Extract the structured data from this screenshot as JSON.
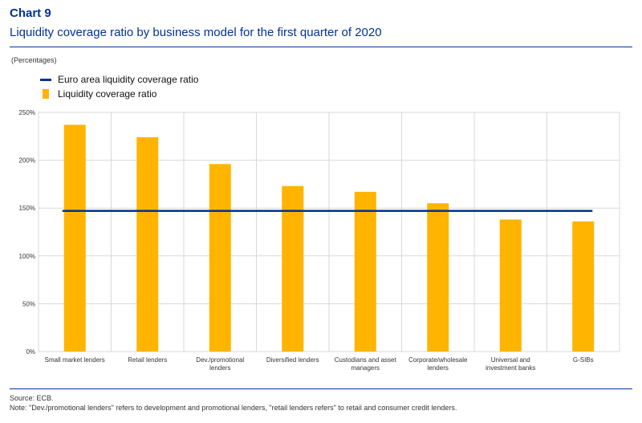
{
  "header": {
    "chart_number": "Chart 9",
    "title": "Liquidity coverage ratio by business model for the first quarter of 2020",
    "units": "(Percentages)"
  },
  "colors": {
    "bar": "#FFB400",
    "line": "#003299",
    "grid": "#D9D9D9",
    "title": "#003299"
  },
  "chart_data": {
    "type": "bar",
    "categories": [
      [
        "Small market lenders"
      ],
      [
        "Retail lenders"
      ],
      [
        "Dev./promotional",
        "lenders"
      ],
      [
        "Diversified lenders"
      ],
      [
        "Custodians and asset",
        "managers"
      ],
      [
        "Corporate/wholesale",
        "lenders"
      ],
      [
        "Universal and",
        "investment banks"
      ],
      [
        "G-SIBs"
      ]
    ],
    "series": [
      {
        "name": "Liquidity coverage ratio",
        "type": "bar",
        "values": [
          237,
          224,
          196,
          173,
          167,
          155,
          138,
          136
        ]
      },
      {
        "name": "Euro area liquidity coverage ratio",
        "type": "line",
        "values": [
          147,
          147,
          147,
          147,
          147,
          147,
          147,
          147
        ]
      }
    ],
    "ylim": [
      0,
      250
    ],
    "yticks": [
      0,
      50,
      100,
      150,
      200,
      250
    ],
    "ytick_labels": [
      "0%",
      "50%",
      "100%",
      "150%",
      "200%",
      "250%"
    ],
    "grid": true,
    "legend_position": "top-left"
  },
  "footer": {
    "source": "Source: ECB.",
    "note": "Note: \"Dev./promotional lenders\" refers to development and promotional lenders, \"retail lenders refers\" to retail and consumer credit lenders."
  }
}
